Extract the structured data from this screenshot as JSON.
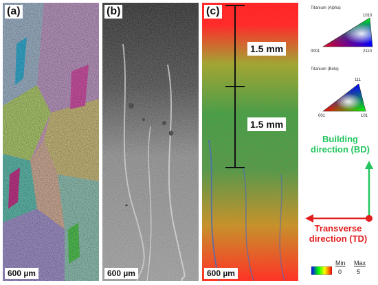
{
  "panels": [
    {
      "label": "(a)",
      "scale": "600 µm"
    },
    {
      "label": "(b)",
      "scale": "600 µm"
    },
    {
      "label": "(c)",
      "scale": "600 µm"
    }
  ],
  "measurements": [
    "1.5 mm",
    "1.5 mm"
  ],
  "legend": {
    "alpha_title": "Titanium (Alpha)",
    "alpha_labels": [
      "0001",
      "2110",
      "1010"
    ],
    "beta_title": "Titanium (Beta)",
    "beta_labels": [
      "001",
      "101",
      "111"
    ]
  },
  "directions": {
    "building": "Building direction (BD)",
    "transverse": "Transverse direction (TD)"
  },
  "colorbar": {
    "min_label": "Min",
    "max_label": "Max",
    "min_value": "0",
    "max_value": "5"
  },
  "colors": {
    "building": "#22c55e",
    "transverse": "#e11d1d"
  }
}
